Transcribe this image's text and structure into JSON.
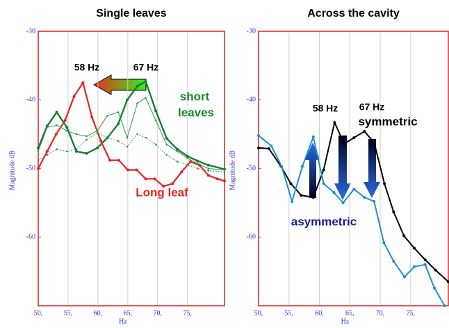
{
  "chart_data": [
    {
      "type": "line",
      "title": "Single leaves",
      "xlabel": "Hz",
      "ylabel": "Magnitude dB",
      "xlim": [
        50,
        81.2
      ],
      "ylim": [
        -70,
        -30
      ],
      "xticks": [
        {
          "value": 50,
          "label": "50,"
        },
        {
          "value": 55,
          "label": "55,"
        },
        {
          "value": 60,
          "label": "60,"
        },
        {
          "value": 65,
          "label": "65,"
        },
        {
          "value": 70,
          "label": "70,"
        },
        {
          "value": 75,
          "label": "75,"
        }
      ],
      "yticks": [
        -30,
        -40,
        -50,
        -60
      ],
      "grid": true,
      "series": [
        {
          "color": "#e8231f",
          "width": 2.2,
          "dash": false,
          "x": [
            50,
            51.5,
            53,
            54.5,
            56,
            57.5,
            59,
            60.5,
            62,
            63.5,
            65,
            66.5,
            68,
            69.5,
            71,
            72.5,
            74,
            75.5,
            77,
            78.5,
            80,
            81.2
          ],
          "values": [
            -50,
            -47.5,
            -45,
            -43,
            -39.5,
            -37.5,
            -42.5,
            -46,
            -48.8,
            -48.8,
            -50.2,
            -50.2,
            -51.5,
            -51.5,
            -52.6,
            -52.2,
            -50.5,
            -49,
            -49.5,
            -51,
            -51.5,
            -51.8
          ]
        },
        {
          "color": "#1a7a3a",
          "width": 2.4,
          "dash": false,
          "x": [
            50,
            51.5,
            53.1,
            54.8,
            56.4,
            58.1,
            59.9,
            61.6,
            63.4,
            64.9,
            66.6,
            68,
            69.7,
            71.5,
            73.3,
            75,
            76.7,
            78.5,
            81.2
          ],
          "values": [
            -47,
            -43.8,
            -41.8,
            -44,
            -47.5,
            -47.8,
            -47,
            -45.5,
            -43.5,
            -40,
            -38,
            -37.3,
            -41.6,
            -45.6,
            -47.2,
            -48.2,
            -48.9,
            -49.5,
            -50.1
          ]
        },
        {
          "color": "#2e9a4a",
          "width": 1,
          "dash": false,
          "x": [
            50,
            51.5,
            53.1,
            54.8,
            56.4,
            58.1,
            59.9,
            61.6,
            63.4,
            64.9,
            66.6,
            68,
            69.7,
            71.5,
            73.3,
            75,
            76.7,
            78.5,
            81.2
          ],
          "values": [
            -47.5,
            -44,
            -43.7,
            -44.5,
            -45,
            -45.3,
            -44.5,
            -42.3,
            -41.8,
            -45.5,
            -40.5,
            -39.7,
            -43,
            -46.5,
            -47.5,
            -48.5,
            -49.3,
            -50,
            -50.2
          ]
        },
        {
          "color": "#2e9a4a",
          "width": 1,
          "dash": true,
          "x": [
            50,
            51.5,
            53.1,
            54.8,
            56.4,
            58.1,
            59.9,
            61.6,
            63.4,
            64.9,
            66.6,
            68,
            69.7,
            71.5,
            73.3,
            75,
            76.7,
            78.5,
            81.2
          ],
          "values": [
            -48.8,
            -48,
            -47.2,
            -47.5,
            -47.2,
            -45.8,
            -44.8,
            -45.5,
            -46,
            -46.8,
            -45,
            -45.5,
            -46.5,
            -48,
            -49,
            -49.5,
            -50,
            -50.3,
            -50.5
          ]
        }
      ],
      "annotations": [
        "58 Hz",
        "67 Hz",
        "short",
        "leaves",
        "Long leaf"
      ]
    },
    {
      "type": "line",
      "title": "Across the cavity",
      "xlabel": "Hz",
      "ylabel": "Magnitude dB",
      "xlim": [
        50,
        81.2
      ],
      "ylim": [
        -70,
        -30
      ],
      "xticks": [
        {
          "value": 50,
          "label": "50,"
        },
        {
          "value": 55,
          "label": "55,"
        },
        {
          "value": 60,
          "label": "60,"
        },
        {
          "value": 65,
          "label": "65,"
        },
        {
          "value": 70,
          "label": "70,"
        },
        {
          "value": 75,
          "label": "75,"
        }
      ],
      "yticks": [
        -30,
        -40,
        -50,
        -60
      ],
      "grid": true,
      "series": [
        {
          "color": "#000000",
          "width": 2,
          "dash": false,
          "x": [
            50,
            51.7,
            53.7,
            55.3,
            57,
            59,
            60.7,
            62.5,
            64.1,
            65.7,
            67.4,
            69,
            70.7,
            72.2,
            73.9,
            75.6,
            77.4,
            79.1,
            81.2
          ],
          "values": [
            -47,
            -47.1,
            -49.7,
            -52.2,
            -53.9,
            -54.2,
            -50.2,
            -43.3,
            -46.4,
            -45.5,
            -44.6,
            -46.2,
            -52.2,
            -56.3,
            -59.8,
            -61.6,
            -63.3,
            -64.8,
            -66.5
          ]
        },
        {
          "color": "#1e8fc8",
          "width": 2,
          "dash": false,
          "x": [
            50,
            52.1,
            53.8,
            55.5,
            57.2,
            59,
            60.7,
            62.4,
            63.9,
            65.7,
            67.4,
            69,
            70.6,
            72.2,
            74,
            75.6,
            77.4,
            78.9,
            80.6
          ],
          "values": [
            -45.2,
            -46.7,
            -49.7,
            -54.8,
            -49.7,
            -45.4,
            -52.2,
            -53.5,
            -55,
            -53,
            -54.2,
            -54.8,
            -60.8,
            -63.5,
            -65.8,
            -64.3,
            -64,
            -67.4,
            -70
          ]
        }
      ],
      "annotations": [
        "58 Hz",
        "67 Hz",
        "symmetric",
        "asymmetric"
      ]
    }
  ]
}
